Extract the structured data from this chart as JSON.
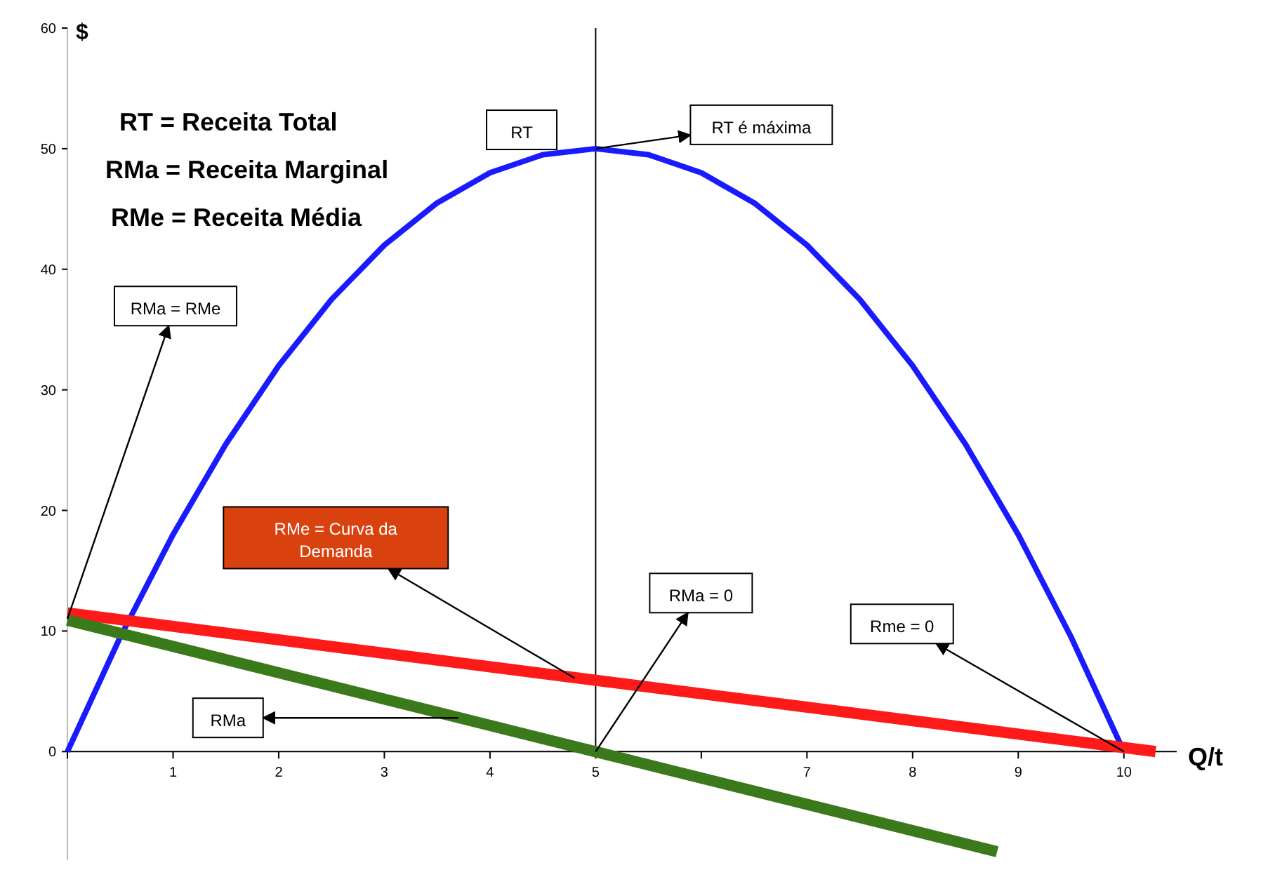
{
  "chart_data": {
    "type": "line",
    "xlabel": "Q/t",
    "ylabel": "$",
    "xlim": [
      0,
      10.5
    ],
    "ylim": [
      -9,
      60
    ],
    "xticks": [
      {
        "value": 0,
        "label": null
      },
      1,
      2,
      3,
      4,
      5,
      {
        "value": 6,
        "label": null
      },
      7,
      8,
      9,
      10
    ],
    "yticks": [
      0,
      10,
      20,
      30,
      40,
      50,
      60
    ],
    "grid": false,
    "marker": "none",
    "line_style": "solid",
    "series": [
      {
        "color": "#1a1aff",
        "x": [
          0,
          0.5,
          1,
          1.5,
          2,
          2.5,
          3,
          3.5,
          4,
          4.5,
          5,
          5.5,
          6,
          6.5,
          7,
          7.5,
          8,
          8.5,
          9,
          9.5,
          10
        ],
        "values": [
          0,
          9.5,
          18,
          25.5,
          32,
          37.5,
          42,
          45.5,
          48,
          49.5,
          50,
          49.5,
          48,
          45.5,
          42,
          37.5,
          32,
          25.5,
          18,
          9.5,
          0
        ]
      },
      {
        "color": "#ff1a1a",
        "x": [
          0,
          10.3
        ],
        "values": [
          11.5,
          0
        ]
      },
      {
        "color": "#3a7a1a",
        "x": [
          0,
          8.8
        ],
        "values": [
          10.9,
          -8.3
        ]
      }
    ],
    "ref_lines": [
      {
        "axis": "x",
        "value": 5,
        "color": "#000000"
      }
    ],
    "annotations": [
      "RT = Receita Total",
      "RMa = Receita Marginal",
      "RMe = Receita Média",
      {
        "text": "RT",
        "x": 4.3,
        "y": 49
      },
      {
        "text": "RT é máxima",
        "x": 5,
        "y": 50
      },
      {
        "text": "RMa = RMe",
        "x": 0,
        "y": 11
      },
      {
        "text": "RMe = Curva da Demanda",
        "x": 4.8,
        "y": 6.1
      },
      {
        "text": "RMa = 0",
        "x": 5,
        "y": 0
      },
      {
        "text": "Rme = 0",
        "x": 10,
        "y": 0
      },
      {
        "text": "RMa",
        "x": 3.7,
        "y": 2.8
      }
    ]
  }
}
